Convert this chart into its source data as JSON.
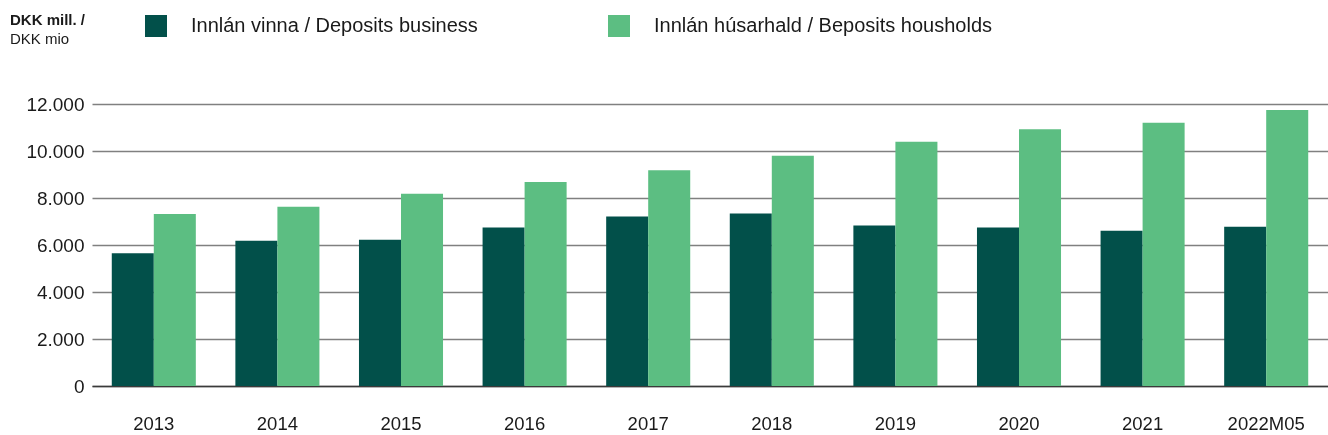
{
  "chart_data": {
    "type": "bar",
    "ylabel": "DKK mill. / DKK mio",
    "categories": [
      "2013",
      "2014",
      "2015",
      "2016",
      "2017",
      "2018",
      "2019",
      "2020",
      "2021",
      "2022M05"
    ],
    "series": [
      {
        "name": "Innlán vinna / Deposits business",
        "color": "#02504a",
        "values": [
          5650,
          6180,
          6220,
          6740,
          7210,
          7340,
          6830,
          6750,
          6610,
          6780
        ]
      },
      {
        "name": "Innlán húsarhald / Beposits housholds",
        "color": "#5cbe82",
        "values": [
          7320,
          7630,
          8180,
          8680,
          9180,
          9800,
          10390,
          10930,
          11200,
          11750
        ]
      }
    ],
    "ylim": [
      0,
      12000
    ],
    "yticks": [
      0,
      {
        "value": 2000,
        "label": "2.000"
      },
      {
        "value": 4000,
        "label": "4.000"
      },
      {
        "value": 6000,
        "label": "6.000"
      },
      {
        "value": 8000,
        "label": "8.000"
      },
      {
        "value": 10000,
        "label": "10.000"
      },
      {
        "value": 12000,
        "label": "12.000"
      }
    ],
    "grid": "y",
    "legend": "top"
  }
}
